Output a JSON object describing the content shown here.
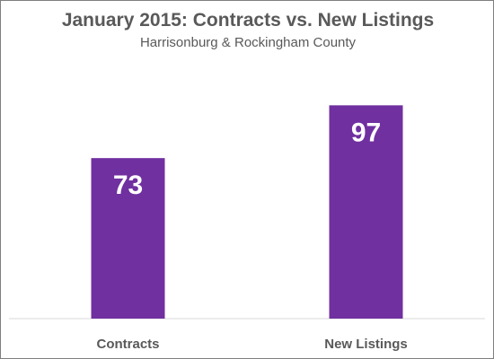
{
  "chart_data": {
    "type": "bar",
    "title": "January 2015: Contracts vs. New Listings",
    "subtitle": "Harrisonburg & Rockingham County",
    "categories": [
      "Contracts",
      "New Listings"
    ],
    "values": [
      73,
      97
    ],
    "data_labels": [
      "73",
      "97"
    ],
    "xlabel": "",
    "ylabel": "",
    "ylim": [
      0,
      120
    ],
    "grid": false,
    "legend": "none",
    "bar_color": "#7030a0"
  }
}
